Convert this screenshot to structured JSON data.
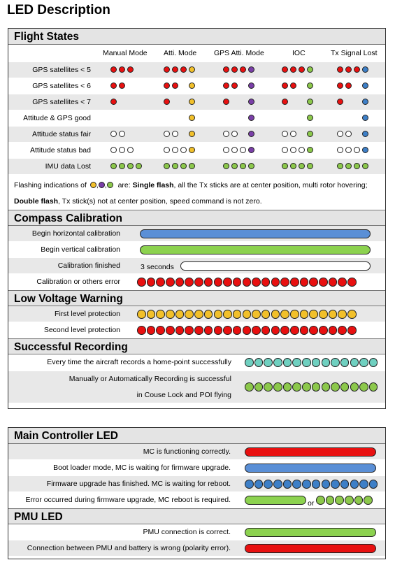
{
  "title": "LED Description",
  "colors": {
    "red": "#e81010",
    "yellow": "#f2c02a",
    "purple": "#7a3fa8",
    "green": "#8cc84b",
    "blue": "#3d7fc7",
    "white": "#ffffff",
    "teal": "#6fd0c0",
    "bar_blue": "#5a8fd6",
    "bar_green": "#8cd24f"
  },
  "flight": {
    "heading": "Flight States",
    "columns": [
      "Manual Mode",
      "Atti. Mode",
      "GPS Atti. Mode",
      "IOC",
      "Tx Signal Lost"
    ],
    "rows": [
      {
        "label": "GPS satellites < 5",
        "cells": [
          [
            "red",
            "red",
            "red"
          ],
          [
            "red",
            "red",
            "red",
            "yellow"
          ],
          [
            "red",
            "red",
            "red",
            "purple"
          ],
          [
            "red",
            "red",
            "red",
            "green"
          ],
          [
            "red",
            "red",
            "red",
            "blue"
          ]
        ]
      },
      {
        "label": "GPS satellites < 6",
        "cells": [
          [
            "red",
            "red"
          ],
          [
            "red",
            "red",
            "",
            "yellow"
          ],
          [
            "red",
            "red",
            "",
            "purple"
          ],
          [
            "red",
            "red",
            "",
            "green"
          ],
          [
            "red",
            "red",
            "",
            "blue"
          ]
        ]
      },
      {
        "label": "GPS satellites < 7",
        "cells": [
          [
            "red"
          ],
          [
            "red",
            "",
            "",
            "yellow"
          ],
          [
            "red",
            "",
            "",
            "purple"
          ],
          [
            "red",
            "",
            "",
            "green"
          ],
          [
            "red",
            "",
            "",
            "blue"
          ]
        ]
      },
      {
        "label": "Attitude & GPS good",
        "cells": [
          [],
          [
            "",
            "",
            "",
            "yellow"
          ],
          [
            "",
            "",
            "",
            "purple"
          ],
          [
            "",
            "",
            "",
            "green"
          ],
          [
            "",
            "",
            "",
            "blue"
          ]
        ]
      },
      {
        "label": "Attitude status fair",
        "cells": [
          [
            "white",
            "white"
          ],
          [
            "white",
            "white",
            "",
            "yellow"
          ],
          [
            "white",
            "white",
            "",
            "purple"
          ],
          [
            "white",
            "white",
            "",
            "green"
          ],
          [
            "white",
            "white",
            "",
            "blue"
          ]
        ]
      },
      {
        "label": "Attitude status bad",
        "cells": [
          [
            "white",
            "white",
            "white"
          ],
          [
            "white",
            "white",
            "white",
            "yellow"
          ],
          [
            "white",
            "white",
            "white",
            "purple"
          ],
          [
            "white",
            "white",
            "white",
            "green"
          ],
          [
            "white",
            "white",
            "white",
            "blue"
          ]
        ]
      },
      {
        "label": "IMU data Lost",
        "cells": [
          [
            "green",
            "green",
            "green",
            "green"
          ],
          [
            "green",
            "green",
            "green",
            "green"
          ],
          [
            "green",
            "green",
            "green",
            "green"
          ],
          [
            "green",
            "green",
            "green",
            "green"
          ],
          [
            "green",
            "green",
            "green",
            "green"
          ]
        ]
      }
    ],
    "note_prefix": "Flashing indications of",
    "note_sep": ",",
    "note_are": "are:",
    "single_label": "Single flash",
    "single_text": ", all the Tx sticks are at center position, multi rotor hovering;",
    "double_label": "Double flash",
    "double_text": ", Tx stick(s) not at center position, speed command is not zero."
  },
  "compass": {
    "heading": "Compass Calibration",
    "rows": [
      {
        "label": "Begin horizontal calibration",
        "type": "bar",
        "color": "blue"
      },
      {
        "label": "Begin vertical calibration",
        "type": "bar",
        "color": "green"
      },
      {
        "label": "Calibration finished",
        "type": "bar",
        "color": "white",
        "prefix": "3 seconds"
      },
      {
        "label": "Calibration or others error",
        "type": "dots",
        "color": "red",
        "count": 23
      }
    ]
  },
  "voltage": {
    "heading": "Low Voltage Warning",
    "rows": [
      {
        "label": "First level protection",
        "color": "yellow",
        "count": 23
      },
      {
        "label": "Second level protection",
        "color": "red",
        "count": 23
      }
    ]
  },
  "recording": {
    "heading": "Successful Recording",
    "row1": {
      "label": "Every time the aircraft records a home-point successfully",
      "color": "teal",
      "count": 14
    },
    "row2": {
      "label_line1": "Manually or Automatically Recording is successful",
      "label_line2": "in Couse Lock and POI flying",
      "color": "green",
      "count": 14
    }
  },
  "mc": {
    "heading": "Main Controller LED",
    "rows": [
      {
        "label": "MC is functioning correctly.",
        "type": "bar",
        "color": "red"
      },
      {
        "label": "Boot loader mode, MC is waiting for firmware upgrade.",
        "type": "bar",
        "color": "blue"
      },
      {
        "label": "Firmware upgrade has finished. MC is waiting for reboot.",
        "type": "dots",
        "color": "blue",
        "count": 14
      },
      {
        "label": "Error occurred during firmware upgrade, MC reboot is required.",
        "type": "mixed",
        "or": "or"
      }
    ]
  },
  "pmu": {
    "heading": "PMU LED",
    "rows": [
      {
        "label": "PMU connection is correct.",
        "color": "green"
      },
      {
        "label": "Connection between PMU and battery is wrong (polarity error).",
        "color": "red"
      }
    ]
  }
}
